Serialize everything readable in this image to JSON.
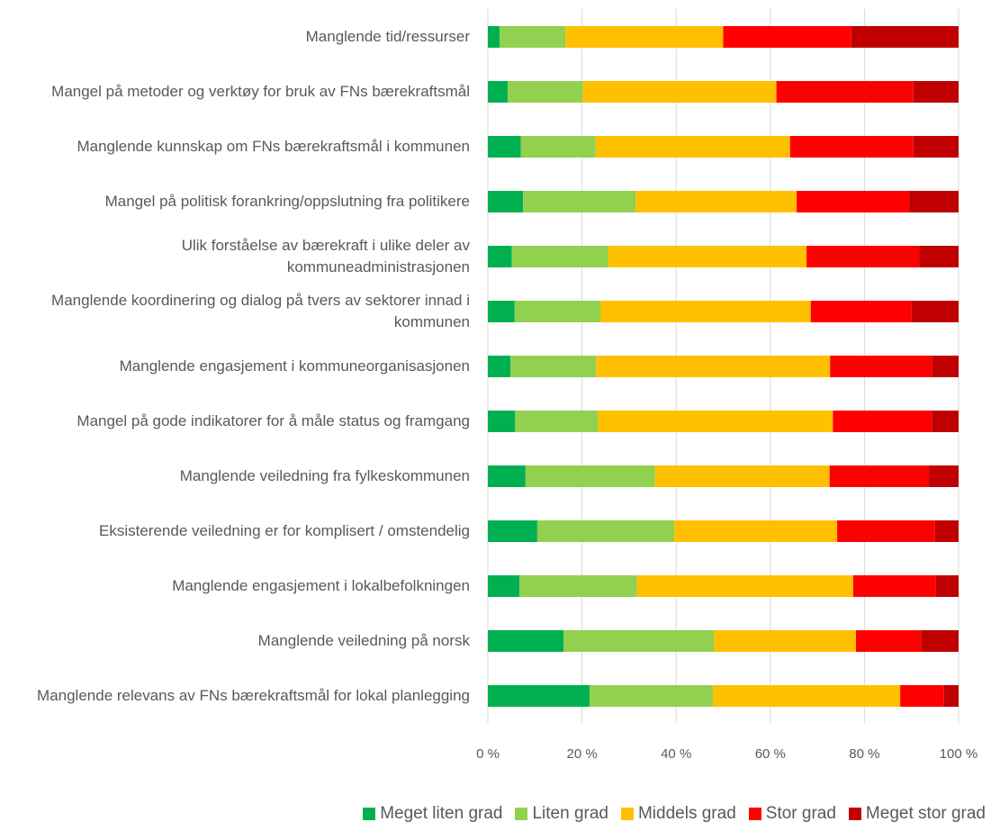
{
  "chart_data": {
    "type": "stacked_barh",
    "categories": [
      "Manglende tid/ressurser",
      "Mangel på metoder og verktøy for bruk av FNs bærekraftsmål",
      "Manglende kunnskap om FNs bærekraftsmål i kommunen",
      "Mangel på politisk forankring/oppslutning fra politikere",
      "Ulik forståelse av bærekraft i ulike deler av kommuneadministrasjonen",
      "Manglende koordinering og dialog på tvers av sektorer innad i kommunen",
      "Manglende engasjement i kommuneorganisasjonen",
      "Mangel på gode indikatorer for å måle status og framgang",
      "Manglende veiledning fra fylkeskommunen",
      "Eksisterende veiledning er for komplisert / omstendelig",
      "Manglende engasjement i lokalbefolkningen",
      "Manglende veiledning på norsk",
      "Manglende relevans av FNs bærekraftsmål for lokal planlegging"
    ],
    "series": [
      {
        "name": "Meget liten grad",
        "color": "#00b050",
        "values": [
          2.5,
          4.2,
          7,
          7.5,
          5.1,
          5.7,
          4.8,
          5.8,
          8,
          10.5,
          6.7,
          16.1,
          21.6
        ]
      },
      {
        "name": "Liten grad",
        "color": "#92d050",
        "values": [
          14,
          16,
          15.9,
          23.9,
          20.5,
          18.2,
          18.2,
          17.6,
          27.5,
          29.1,
          25,
          31.9,
          26.2
        ]
      },
      {
        "name": "Middels grad",
        "color": "#ffc000",
        "values": [
          33.5,
          41.1,
          41.3,
          34.2,
          42.1,
          44.7,
          49.7,
          49.9,
          37.1,
          34.6,
          45.9,
          30.2,
          39.8
        ]
      },
      {
        "name": "Stor grad",
        "color": "#ff0000",
        "values": [
          27.2,
          29.1,
          26.2,
          23.9,
          23.9,
          21.4,
          21.6,
          21,
          21.1,
          20.8,
          17.6,
          13.8,
          9.3
        ]
      },
      {
        "name": "Meget stor grad",
        "color": "#c00000",
        "values": [
          22.8,
          9.6,
          9.6,
          10.5,
          8.4,
          10,
          5.7,
          5.7,
          6.3,
          5,
          4.8,
          8,
          3.1
        ]
      }
    ],
    "xlim": [
      0,
      100
    ],
    "xticks": [
      {
        "value": 0,
        "label": "0 %"
      },
      {
        "value": 20,
        "label": "20 %"
      },
      {
        "value": 40,
        "label": "40 %"
      },
      {
        "value": 60,
        "label": "60 %"
      },
      {
        "value": 80,
        "label": "80 %"
      },
      {
        "value": 100,
        "label": "100 %"
      }
    ],
    "grid": true,
    "legend": "bottom"
  }
}
